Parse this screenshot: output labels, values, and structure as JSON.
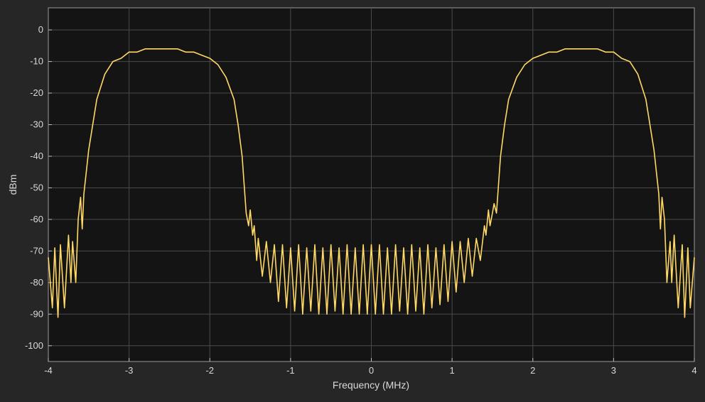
{
  "chart_data": {
    "type": "line",
    "title": "",
    "xlabel": "Frequency (MHz)",
    "ylabel": "dBm",
    "xlim": [
      -4,
      4
    ],
    "ylim": [
      -105,
      7
    ],
    "xticks": [
      -4,
      -3,
      -2,
      -1,
      0,
      1,
      2,
      3,
      4
    ],
    "yticks": [
      0,
      -10,
      -20,
      -30,
      -40,
      -50,
      -60,
      -70,
      -80,
      -90,
      -100
    ],
    "grid": true,
    "legend": "none",
    "colors": {
      "background": "#262626",
      "plot_area": "#141414",
      "grid": "#4a4a4a",
      "line": "#ffd966",
      "text": "#d9d9d9"
    },
    "series": [
      {
        "x": [
          -4.0,
          -3.95,
          -3.92,
          -3.88,
          -3.85,
          -3.8,
          -3.75,
          -3.72,
          -3.7,
          -3.66,
          -3.63,
          -3.6,
          -3.58,
          -3.56,
          -3.5,
          -3.4,
          -3.3,
          -3.2,
          -3.1,
          -3.0,
          -2.9,
          -2.8,
          -2.7,
          -2.6,
          -2.5,
          -2.4,
          -2.3,
          -2.2,
          -2.1,
          -2.0,
          -1.9,
          -1.8,
          -1.7,
          -1.65,
          -1.6,
          -1.55,
          -1.52,
          -1.5,
          -1.47,
          -1.45,
          -1.42,
          -1.4,
          -1.35,
          -1.3,
          -1.25,
          -1.2,
          -1.15,
          -1.1,
          -1.05,
          -1.0,
          -0.95,
          -0.9,
          -0.85,
          -0.8,
          -0.75,
          -0.7,
          -0.65,
          -0.6,
          -0.55,
          -0.5,
          -0.45,
          -0.4,
          -0.35,
          -0.3,
          -0.25,
          -0.2,
          -0.15,
          -0.1,
          -0.05,
          0.0,
          0.05,
          0.1,
          0.15,
          0.2,
          0.25,
          0.3,
          0.35,
          0.4,
          0.45,
          0.5,
          0.55,
          0.6,
          0.65,
          0.7,
          0.75,
          0.8,
          0.85,
          0.9,
          0.95,
          1.0,
          1.05,
          1.1,
          1.15,
          1.2,
          1.25,
          1.3,
          1.35,
          1.4,
          1.42,
          1.45,
          1.47,
          1.5,
          1.52,
          1.55,
          1.6,
          1.65,
          1.7,
          1.8,
          1.9,
          2.0,
          2.1,
          2.2,
          2.3,
          2.4,
          2.5,
          2.6,
          2.7,
          2.8,
          2.9,
          3.0,
          3.1,
          3.2,
          3.3,
          3.4,
          3.5,
          3.56,
          3.58,
          3.6,
          3.63,
          3.66,
          3.7,
          3.72,
          3.75,
          3.8,
          3.85,
          3.88,
          3.92,
          3.95,
          4.0
        ],
        "y": [
          -72,
          -88,
          -69,
          -91,
          -68,
          -88,
          -65,
          -80,
          -67,
          -80,
          -60,
          -53,
          -63,
          -52,
          -38,
          -22,
          -14,
          -10,
          -9,
          -7,
          -7,
          -6,
          -6,
          -6,
          -6,
          -6,
          -7,
          -7,
          -8,
          -9,
          -11,
          -15,
          -22,
          -30,
          -40,
          -58,
          -62,
          -57,
          -65,
          -62,
          -73,
          -66,
          -78,
          -67,
          -80,
          -68,
          -86,
          -68,
          -88,
          -69,
          -89,
          -68,
          -90,
          -69,
          -89,
          -68,
          -90,
          -69,
          -90,
          -68,
          -89,
          -69,
          -90,
          -68,
          -90,
          -69,
          -90,
          -68,
          -90,
          -68,
          -90,
          -68,
          -90,
          -69,
          -90,
          -68,
          -89,
          -69,
          -90,
          -68,
          -89,
          -69,
          -90,
          -68,
          -88,
          -69,
          -87,
          -68,
          -86,
          -67,
          -83,
          -67,
          -80,
          -66,
          -78,
          -66,
          -73,
          -62,
          -65,
          -57,
          -62,
          -58,
          -55,
          -58,
          -40,
          -30,
          -22,
          -15,
          -11,
          -9,
          -8,
          -7,
          -7,
          -6,
          -6,
          -6,
          -6,
          -6,
          -7,
          -7,
          -9,
          -10,
          -14,
          -22,
          -38,
          -52,
          -63,
          -53,
          -60,
          -80,
          -67,
          -80,
          -65,
          -88,
          -68,
          -91,
          -69,
          -88,
          -72
        ]
      }
    ]
  }
}
